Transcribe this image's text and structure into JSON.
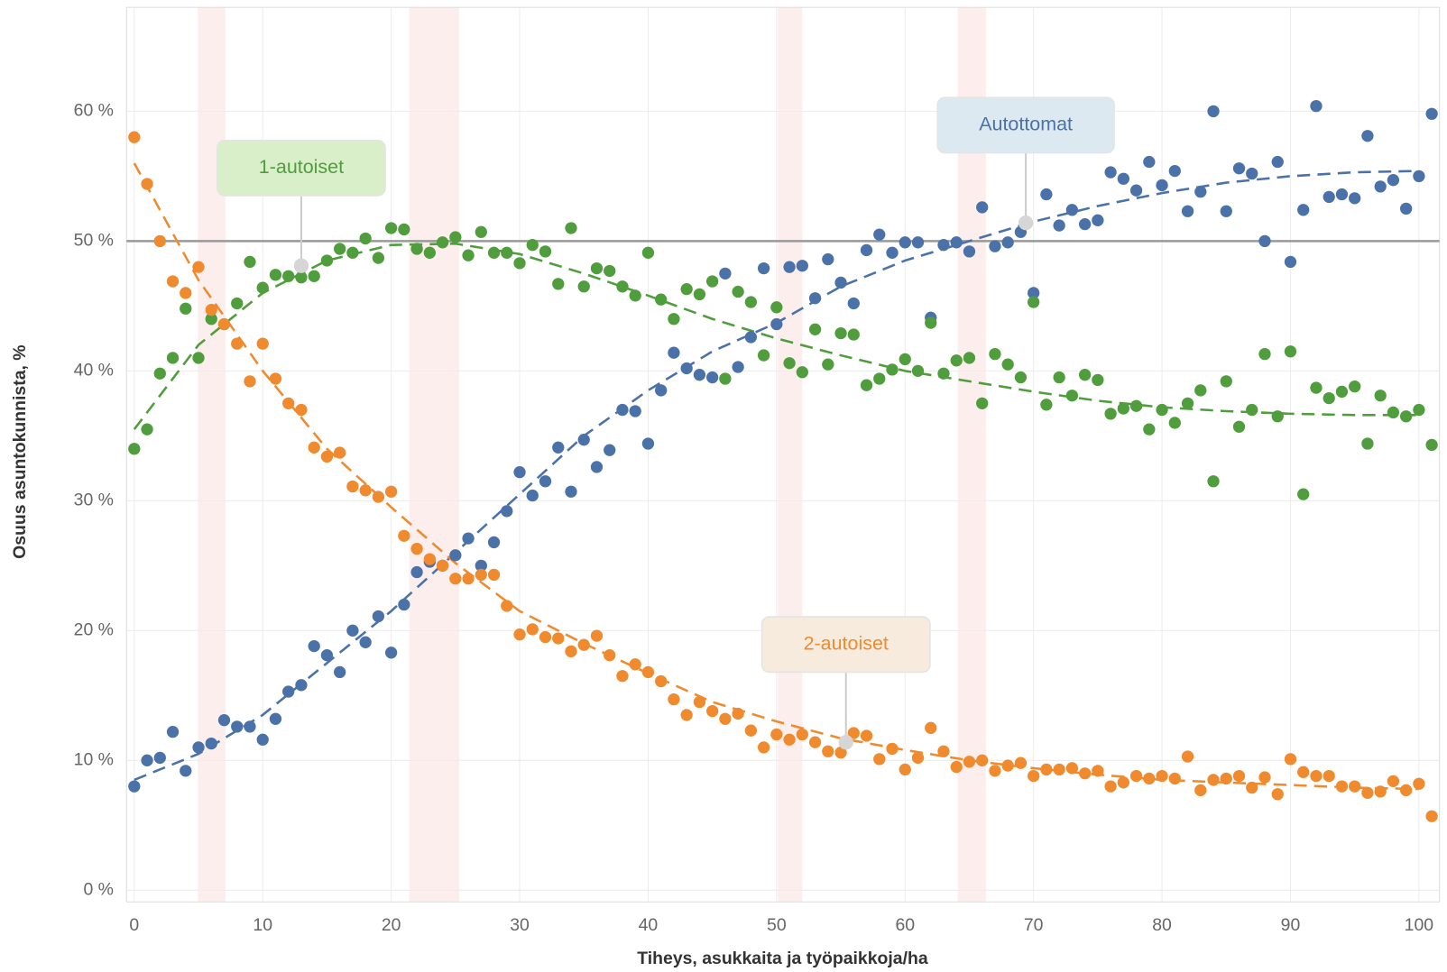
{
  "chart_data": {
    "type": "scatter",
    "x_label": "Tiheys, asukkaita ja työpaikkoja/ha",
    "y_label": "Osuus asuntokunnista, %",
    "xlim": [
      -0.6,
      101.6
    ],
    "ylim": [
      -0.9,
      68
    ],
    "xticks": [
      0,
      10,
      20,
      30,
      40,
      50,
      60,
      70,
      80,
      90,
      100
    ],
    "yticks": [
      {
        "value": 0,
        "label": "0 %"
      },
      {
        "value": 10,
        "label": "10 %"
      },
      {
        "value": 20,
        "label": "20 %"
      },
      {
        "value": 30,
        "label": "30 %"
      },
      {
        "value": 40,
        "label": "40 %"
      },
      {
        "value": 50,
        "label": "50 %"
      },
      {
        "value": 60,
        "label": "60 %"
      }
    ],
    "grid": true,
    "reference_line": 50,
    "highlight_bands": [
      [
        4.95,
        7.1
      ],
      [
        21.4,
        25.3
      ],
      [
        50.1,
        52
      ],
      [
        64.1,
        66.3
      ]
    ],
    "x": [
      0,
      1,
      2,
      3,
      4,
      5,
      6,
      7,
      8,
      9,
      10,
      11,
      12,
      13,
      14,
      15,
      16,
      17,
      18,
      19,
      20,
      21,
      22,
      23,
      24,
      25,
      26,
      27,
      28,
      29,
      30,
      31,
      32,
      33,
      34,
      35,
      36,
      37,
      38,
      39,
      40,
      41,
      42,
      43,
      44,
      45,
      46,
      47,
      48,
      49,
      50,
      51,
      52,
      53,
      54,
      55,
      56,
      57,
      58,
      59,
      60,
      61,
      62,
      63,
      64,
      65,
      66,
      67,
      68,
      69,
      70,
      71,
      72,
      73,
      74,
      75,
      76,
      77,
      78,
      79,
      80,
      81,
      82,
      83,
      84,
      85,
      86,
      87,
      88,
      89,
      90,
      91,
      92,
      93,
      94,
      95,
      96,
      97,
      98,
      99,
      100,
      101
    ],
    "series": [
      {
        "name": "Autottomat",
        "color": "#4a72a8",
        "label_bg": "#dde9f1",
        "values": [
          8,
          10,
          10.2,
          12.2,
          9.2,
          11,
          11.3,
          13.1,
          12.6,
          12.6,
          11.6,
          13.2,
          15.3,
          15.8,
          18.8,
          18.1,
          16.8,
          20,
          19.1,
          21.1,
          18.3,
          22,
          24.5,
          25.3,
          25,
          25.8,
          27.1,
          25,
          26.8,
          29.2,
          32.2,
          30.4,
          31.5,
          34.1,
          30.7,
          34.7,
          32.6,
          33.9,
          37,
          36.9,
          34.4,
          38.5,
          41.4,
          40.2,
          39.7,
          39.5,
          47.5,
          40.3,
          42.6,
          47.9,
          43.6,
          48,
          48.1,
          45.6,
          48.6,
          46.8,
          45.2,
          49.3,
          50.5,
          49.1,
          49.9,
          49.9,
          44.1,
          49.7,
          49.9,
          49.2,
          52.6,
          49.6,
          49.9,
          50.7,
          46,
          53.6,
          51.2,
          52.4,
          51.3,
          51.6,
          55.3,
          54.8,
          53.9,
          56.1,
          54.3,
          55.4,
          52.3,
          53.8,
          60,
          52.3,
          55.6,
          55.2,
          50,
          56.1,
          48.4,
          52.4,
          60.4,
          53.4,
          53.6,
          53.3,
          58.1,
          54.2,
          54.7,
          52.5,
          55,
          59.8
        ],
        "trend_x": [
          0,
          5,
          10,
          15,
          20,
          25,
          30,
          35,
          40,
          45,
          50,
          55,
          60,
          65,
          70,
          75,
          80,
          85,
          90,
          95,
          100
        ],
        "trend": [
          8.5,
          10.5,
          13.5,
          17.5,
          21.5,
          26,
          30.5,
          35,
          38.5,
          41.5,
          43.7,
          46.5,
          48.5,
          50,
          51.5,
          52.7,
          53.7,
          54.5,
          55,
          55.3,
          55.4
        ],
        "annotation": {
          "x": 69.4,
          "y": 51.4
        }
      },
      {
        "name": "1-autoiset",
        "color": "#4f9d3c",
        "label_bg": "#d9efc9",
        "values": [
          34,
          35.5,
          39.8,
          41,
          44.8,
          41,
          44,
          43.6,
          45.2,
          48.4,
          46.4,
          47.4,
          47.3,
          47.2,
          47.3,
          48.5,
          49.4,
          49.1,
          50.2,
          48.7,
          51,
          50.9,
          49.4,
          49.1,
          49.9,
          50.3,
          48.9,
          50.7,
          49.1,
          49.1,
          48.3,
          49.7,
          49.2,
          46.7,
          51,
          46.5,
          47.9,
          47.7,
          46.5,
          45.8,
          49.1,
          45.5,
          44,
          46.3,
          45.9,
          46.9,
          39.4,
          46.1,
          45.3,
          41.2,
          44.9,
          40.6,
          39.9,
          43.2,
          40.5,
          42.9,
          42.8,
          38.9,
          39.4,
          40.1,
          40.9,
          40,
          43.7,
          39.8,
          40.8,
          41,
          37.5,
          41.3,
          40.5,
          39.5,
          45.3,
          37.4,
          39.5,
          38.1,
          39.7,
          39.3,
          36.7,
          37.1,
          37.3,
          35.5,
          37,
          36,
          37.5,
          38.5,
          31.5,
          39.2,
          35.7,
          37,
          41.3,
          36.5,
          41.5,
          30.5,
          38.7,
          37.9,
          38.4,
          38.8,
          34.4,
          38.1,
          36.8,
          36.5,
          37,
          34.3
        ],
        "trend_x": [
          0,
          5,
          10,
          15,
          20,
          25,
          30,
          35,
          40,
          45,
          50,
          55,
          60,
          65,
          70,
          75,
          80,
          85,
          90,
          95,
          100
        ],
        "trend": [
          35.5,
          42,
          46,
          48.5,
          49.7,
          49.8,
          49,
          47.5,
          45.8,
          44,
          42.5,
          41.2,
          40,
          39.2,
          38.4,
          37.7,
          37.2,
          36.9,
          36.7,
          36.6,
          36.6
        ],
        "annotation": {
          "x": 13,
          "y": 48.1
        }
      },
      {
        "name": "2-autoiset",
        "color": "#ef8a2e",
        "label_bg": "#f6ebdd",
        "values": [
          58,
          54.4,
          50,
          46.9,
          46,
          48,
          44.7,
          43.6,
          42.1,
          39.2,
          42.1,
          39.4,
          37.5,
          37,
          34.1,
          33.4,
          33.7,
          31.1,
          30.8,
          30.3,
          30.7,
          27.3,
          26.3,
          25.5,
          25,
          24,
          24,
          24.3,
          24.3,
          21.9,
          19.7,
          20.1,
          19.5,
          19.4,
          18.4,
          18.9,
          19.6,
          18.1,
          16.5,
          17.4,
          16.8,
          16.1,
          14.7,
          13.5,
          14.5,
          13.8,
          13.2,
          13.6,
          12.3,
          11,
          12,
          11.6,
          12,
          11.4,
          10.7,
          10.6,
          12.1,
          11.9,
          10.1,
          10.9,
          9.3,
          10.2,
          12.5,
          10.7,
          9.5,
          9.9,
          10,
          9.2,
          9.6,
          9.8,
          8.8,
          9.3,
          9.3,
          9.4,
          9,
          9.2,
          8,
          8.3,
          8.8,
          8.6,
          8.8,
          8.6,
          10.3,
          7.7,
          8.5,
          8.6,
          8.8,
          7.9,
          8.7,
          7.4,
          10.1,
          9.1,
          8.8,
          8.8,
          8,
          8,
          7.5,
          7.6,
          8.4,
          7.7,
          8.2,
          5.7
        ],
        "trend_x": [
          0,
          5,
          10,
          15,
          20,
          25,
          30,
          35,
          40,
          45,
          50,
          55,
          60,
          65,
          70,
          75,
          80,
          85,
          90,
          95,
          100
        ],
        "trend": [
          56,
          47,
          40,
          34,
          29.5,
          25.2,
          21.5,
          19,
          16.7,
          14.5,
          13,
          11.7,
          10.8,
          10,
          9.4,
          8.9,
          8.5,
          8.3,
          8.1,
          7.9,
          7.8
        ],
        "annotation": {
          "x": 55.4,
          "y": 11.4
        }
      }
    ]
  }
}
